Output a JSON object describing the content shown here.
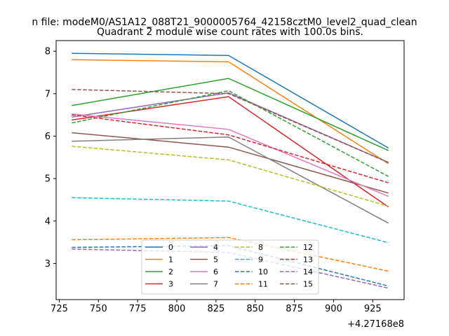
{
  "chart_data": {
    "type": "line",
    "title": "Quadrant 2 module wise count rates with 100.0s bins.",
    "suptitle": "n file: modeM0/AS1A12_088T21_9000005764_42158cztM0_level2_quad_clean",
    "xlabel": "",
    "ylabel": "",
    "x_offset_label": "+4.27168e8",
    "x": [
      733,
      833,
      935
    ],
    "xlim": [
      723,
      945
    ],
    "ylim": [
      2.15,
      8.25
    ],
    "xticks": [
      725,
      750,
      775,
      800,
      825,
      850,
      875,
      900,
      925
    ],
    "yticks": [
      3,
      4,
      5,
      6,
      7,
      8
    ],
    "grid": false,
    "legend_position": "lower center",
    "legend_columns": 4,
    "series": [
      {
        "name": "0",
        "color": "#1f77b4",
        "dash": "solid",
        "values": [
          7.95,
          7.9,
          5.72
        ]
      },
      {
        "name": "1",
        "color": "#ff7f0e",
        "dash": "solid",
        "values": [
          7.8,
          7.75,
          5.35
        ]
      },
      {
        "name": "2",
        "color": "#2ca02c",
        "dash": "solid",
        "values": [
          6.72,
          7.36,
          5.66
        ]
      },
      {
        "name": "3",
        "color": "#d62728",
        "dash": "solid",
        "values": [
          6.38,
          6.93,
          4.33
        ]
      },
      {
        "name": "4",
        "color": "#9467bd",
        "dash": "solid",
        "values": [
          6.45,
          7.02,
          5.38
        ]
      },
      {
        "name": "5",
        "color": "#8c564b",
        "dash": "solid",
        "values": [
          6.08,
          5.74,
          4.66
        ]
      },
      {
        "name": "6",
        "color": "#e377c2",
        "dash": "solid",
        "values": [
          6.52,
          6.16,
          4.58
        ]
      },
      {
        "name": "7",
        "color": "#7f7f7f",
        "dash": "solid",
        "values": [
          5.88,
          5.98,
          3.95
        ]
      },
      {
        "name": "8",
        "color": "#bcbd22",
        "dash": "dashed",
        "values": [
          5.76,
          5.44,
          4.35
        ]
      },
      {
        "name": "9",
        "color": "#17becf",
        "dash": "dashed",
        "values": [
          4.55,
          4.47,
          3.49
        ]
      },
      {
        "name": "10",
        "color": "#1f77b4",
        "dash": "dashed",
        "values": [
          3.38,
          3.42,
          2.47
        ]
      },
      {
        "name": "11",
        "color": "#ff7f0e",
        "dash": "dashed",
        "values": [
          3.56,
          3.61,
          2.82
        ]
      },
      {
        "name": "12",
        "color": "#2ca02c",
        "dash": "dashed",
        "values": [
          6.31,
          7.07,
          5.05
        ]
      },
      {
        "name": "13",
        "color": "#d62728",
        "dash": "dashed",
        "values": [
          6.5,
          6.03,
          4.9
        ]
      },
      {
        "name": "14",
        "color": "#9467bd",
        "dash": "dashed",
        "values": [
          3.34,
          3.26,
          2.42
        ]
      },
      {
        "name": "15",
        "color": "#8c564b",
        "dash": "dashed",
        "values": [
          7.1,
          7.0,
          5.38
        ]
      }
    ]
  }
}
